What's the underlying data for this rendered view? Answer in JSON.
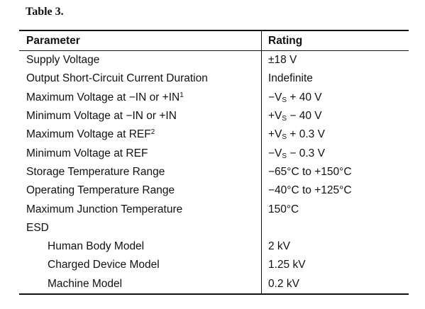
{
  "title": "Table 3.",
  "table": {
    "header": [
      "Parameter",
      "Rating"
    ],
    "rows": [
      {
        "parameter": "Supply Voltage",
        "rating": "±18 V"
      },
      {
        "parameter": "Output Short-Circuit Current Duration",
        "rating": "Indefinite"
      },
      {
        "parameter": [
          {
            "text": "Maximum Voltage at −IN or +IN"
          },
          {
            "text": "1",
            "style": "sup"
          }
        ],
        "rating": [
          {
            "text": "−V"
          },
          {
            "text": "S",
            "style": "sub"
          },
          {
            "text": " + 40 V"
          }
        ]
      },
      {
        "parameter": "Minimum Voltage at −IN or +IN",
        "rating": [
          {
            "text": "+V"
          },
          {
            "text": "S",
            "style": "sub"
          },
          {
            "text": " − 40 V"
          }
        ]
      },
      {
        "parameter": [
          {
            "text": "Maximum Voltage at REF"
          },
          {
            "text": "2",
            "style": "sup"
          }
        ],
        "rating": [
          {
            "text": "+V"
          },
          {
            "text": "S",
            "style": "sub"
          },
          {
            "text": " + 0.3 V"
          }
        ]
      },
      {
        "parameter": "Minimum Voltage at REF",
        "rating": [
          {
            "text": "−V"
          },
          {
            "text": "S",
            "style": "sub"
          },
          {
            "text": " − 0.3 V"
          }
        ]
      },
      {
        "parameter": "Storage Temperature Range",
        "rating": "−65°C to +150°C"
      },
      {
        "parameter": "Operating Temperature Range",
        "rating": "−40°C to +125°C"
      },
      {
        "parameter": "Maximum Junction Temperature",
        "rating": "150°C"
      },
      {
        "parameter": "ESD",
        "rating": ""
      },
      {
        "parameter": "Human Body Model",
        "rating": "2 kV",
        "level": 1
      },
      {
        "parameter": "Charged Device Model",
        "rating": "1.25 kV",
        "level": 1
      },
      {
        "parameter": "Machine Model",
        "rating": "0.2 kV",
        "level": 1
      }
    ]
  }
}
